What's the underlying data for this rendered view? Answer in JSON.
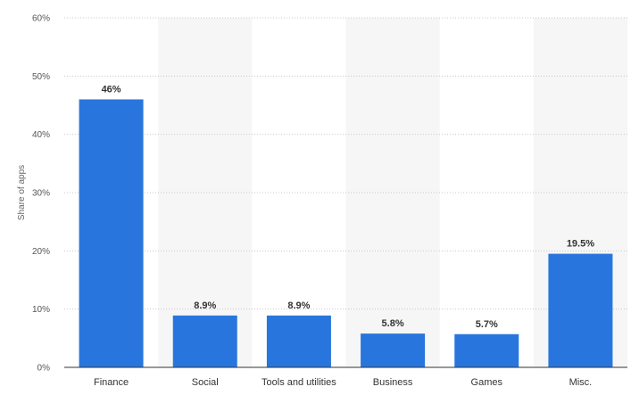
{
  "chart_data": {
    "type": "bar",
    "categories": [
      "Finance",
      "Social",
      "Tools and utilities",
      "Business",
      "Games",
      "Misc."
    ],
    "values": [
      46,
      8.9,
      8.9,
      5.8,
      5.7,
      19.5
    ],
    "data_labels": [
      "46%",
      "8.9%",
      "8.9%",
      "5.8%",
      "5.7%",
      "19.5%"
    ],
    "title": "",
    "xlabel": "",
    "ylabel": "Share of apps",
    "ylim": [
      0,
      60
    ],
    "yticks": [
      0,
      10,
      20,
      30,
      40,
      50,
      60
    ],
    "ytick_labels": [
      "0%",
      "10%",
      "20%",
      "30%",
      "40%",
      "50%",
      "60%"
    ],
    "grid": true,
    "legend": false,
    "colors": {
      "bar": "#2876dd",
      "band": "#f6f6f6",
      "grid": "#c8c8c8",
      "axis": "#333333"
    }
  }
}
